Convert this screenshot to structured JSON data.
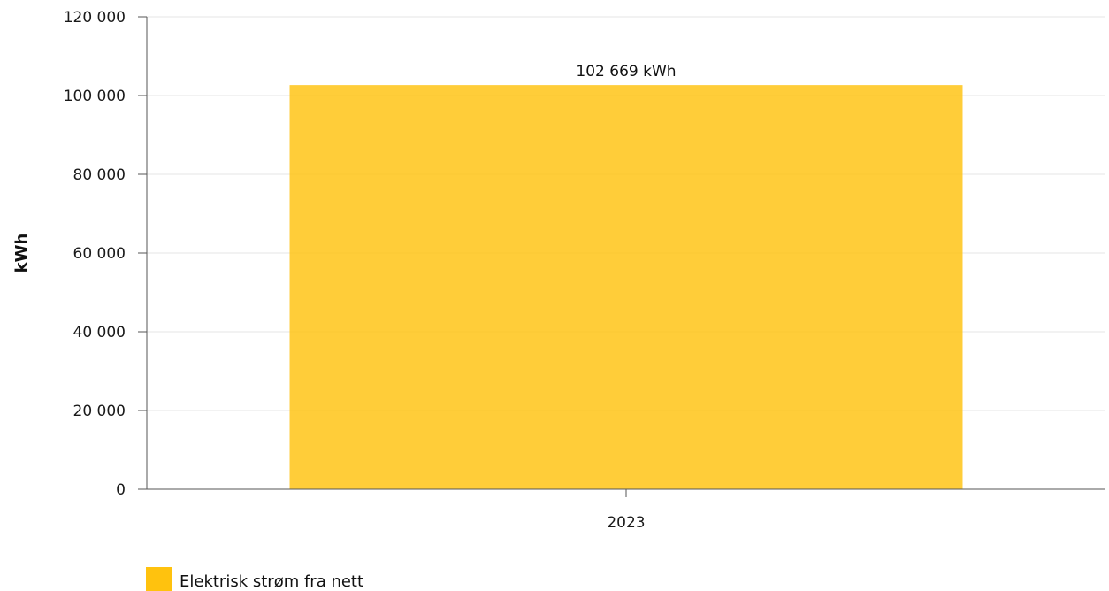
{
  "chart_data": {
    "type": "bar",
    "categories": [
      "2023"
    ],
    "series": [
      {
        "name": "Elektrisk strøm fra nett",
        "values": [
          102669
        ],
        "color": "#ffc20e"
      }
    ],
    "data_labels": [
      "102 669 kWh"
    ],
    "ylabel": "kWh",
    "xlabel": "",
    "ylim": [
      0,
      120000
    ],
    "yticks": [
      0,
      20000,
      40000,
      60000,
      80000,
      100000,
      120000
    ],
    "ytick_labels": [
      "0",
      "20 000",
      "40 000",
      "60 000",
      "80 000",
      "100 000",
      "120 000"
    ],
    "grid": true,
    "legend_position": "bottom-left"
  },
  "colors": {
    "bar": "#ffc20e",
    "grid": "#e6e6e6",
    "axis": "#555555"
  }
}
